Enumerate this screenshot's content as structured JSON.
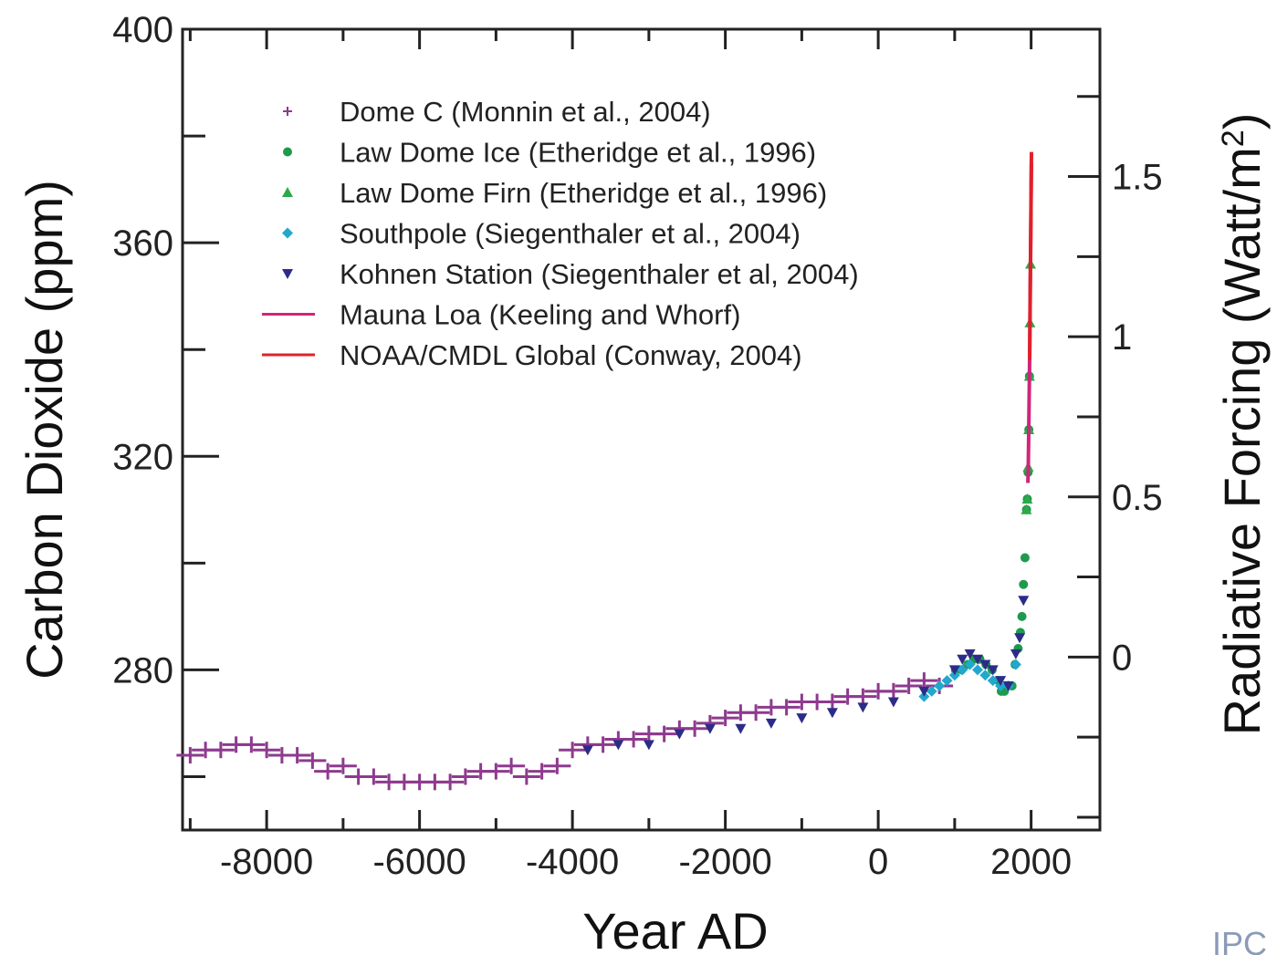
{
  "chart_data": {
    "type": "scatter",
    "title": "",
    "xlabel": "Year AD",
    "ylabel": "Carbon Dioxide (ppm)",
    "ylabel_right_prefix": "Radiative Forcing (Watt/m",
    "ylabel_right_sup": "2",
    "ylabel_right_suffix": ")",
    "credit": "IPC",
    "xlim": [
      -9100,
      2900
    ],
    "ylim": [
      250,
      400
    ],
    "y2lim": [
      -0.54,
      1.96
    ],
    "x_ticks": [
      -8000,
      -6000,
      -4000,
      -2000,
      0,
      2000
    ],
    "x_tick_labels": [
      "-8000",
      "-6000",
      "-4000",
      "-2000",
      "0",
      "2000"
    ],
    "y_ticks": [
      280,
      320,
      360,
      400
    ],
    "y_tick_labels": [
      "280",
      "320",
      "360",
      "400"
    ],
    "y2_ticks": [
      0,
      0.5,
      1,
      1.5
    ],
    "y2_tick_labels": [
      "0",
      "0.5",
      "1",
      "1.5"
    ],
    "grid": false,
    "legend_position": "top-left",
    "series": [
      {
        "name": "Dome C (Monnin et al., 2004)",
        "marker": "plus",
        "color": "#8e3a8e",
        "x": [
          -9000,
          -8800,
          -8600,
          -8400,
          -8200,
          -8000,
          -7800,
          -7600,
          -7400,
          -7200,
          -7000,
          -6800,
          -6600,
          -6400,
          -6200,
          -6000,
          -5800,
          -5600,
          -5400,
          -5200,
          -5000,
          -4800,
          -4600,
          -4400,
          -4200,
          -4000,
          -3800,
          -3600,
          -3400,
          -3200,
          -3000,
          -2800,
          -2600,
          -2400,
          -2200,
          -2000,
          -1800,
          -1600,
          -1400,
          -1200,
          -1000,
          -800,
          -600,
          -400,
          -200,
          0,
          200,
          400,
          600,
          800
        ],
        "y": [
          264,
          265,
          265,
          266,
          266,
          265,
          264,
          264,
          263,
          261,
          262,
          260,
          260,
          259,
          259,
          259,
          259,
          259,
          260,
          261,
          261,
          262,
          260,
          261,
          262,
          265,
          266,
          266,
          267,
          267,
          268,
          268,
          269,
          269,
          270,
          271,
          272,
          272,
          273,
          273,
          274,
          274,
          274,
          275,
          275,
          276,
          276,
          277,
          278,
          277
        ]
      },
      {
        "name": "Law Dome Ice (Etheridge et al., 1996)",
        "marker": "circle",
        "color": "#1e9a4e",
        "x": [
          1010,
          1090,
          1170,
          1250,
          1330,
          1410,
          1490,
          1570,
          1610,
          1650,
          1700,
          1750,
          1790,
          1830,
          1860,
          1880,
          1900,
          1920,
          1940,
          1950,
          1960,
          1970,
          1978
        ],
        "y": [
          280,
          280,
          281,
          282,
          282,
          281,
          280,
          278,
          276,
          276,
          277,
          277,
          281,
          284,
          287,
          290,
          296,
          301,
          310,
          312,
          317,
          325,
          335
        ]
      },
      {
        "name": "Law Dome Firn (Etheridge et al., 1996)",
        "marker": "triangle-up",
        "color": "#2ea84a",
        "x": [
          1938,
          1950,
          1962,
          1970,
          1978,
          1985,
          1993
        ],
        "y": [
          310,
          312,
          318,
          325,
          335,
          345,
          356
        ]
      },
      {
        "name": "Southpole (Siegenthaler et al., 2004)",
        "marker": "diamond",
        "color": "#22a8cc",
        "x": [
          600,
          700,
          800,
          900,
          1000,
          1100,
          1200,
          1300,
          1400,
          1500,
          1600,
          1700,
          1800
        ],
        "y": [
          275,
          276,
          277,
          278,
          279,
          280,
          281,
          280,
          279,
          278,
          277,
          277,
          281
        ]
      },
      {
        "name": "Kohnen Station (Siegenthaler et al, 2004)",
        "marker": "triangle-down",
        "color": "#2c2c88",
        "x": [
          -3800,
          -3400,
          -3000,
          -2600,
          -2200,
          -1800,
          -1400,
          -1000,
          -600,
          -200,
          200,
          600,
          1000,
          1100,
          1200,
          1300,
          1400,
          1500,
          1600,
          1700,
          1800,
          1850,
          1900
        ],
        "y": [
          265,
          266,
          266,
          268,
          269,
          269,
          270,
          271,
          272,
          273,
          274,
          276,
          280,
          282,
          283,
          282,
          281,
          280,
          278,
          277,
          283,
          286,
          293
        ]
      },
      {
        "name": "Mauna Loa (Keeling and Whorf)",
        "marker": "line",
        "color": "#d0257a",
        "x": [
          1958,
          1963,
          1968,
          1973,
          1978,
          1983,
          1988,
          1993,
          1998,
          2003
        ],
        "y": [
          315,
          318,
          323,
          330,
          335,
          342,
          351,
          357,
          367,
          375
        ]
      },
      {
        "name": "NOAA/CMDL Global  (Conway, 2004)",
        "marker": "line",
        "color": "#e0202a",
        "x": [
          1980,
          1985,
          1990,
          1995,
          2000,
          2004
        ],
        "y": [
          338,
          345,
          354,
          361,
          369,
          377
        ]
      }
    ]
  }
}
